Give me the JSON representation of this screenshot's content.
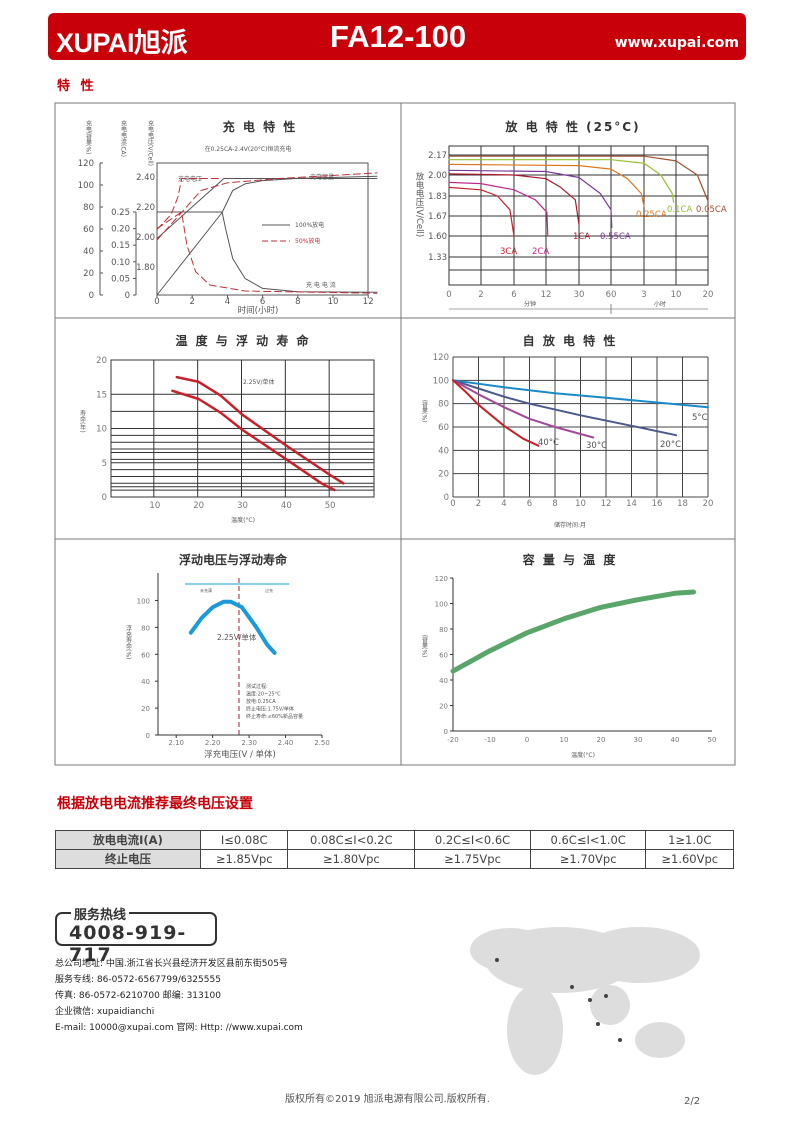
{
  "header": {
    "logo": "XUPAI旭派",
    "model": "FA12-100",
    "website": "www.xupai.com"
  },
  "section_title": "特 性",
  "charge_chart": {
    "title": "充 电 特 性",
    "subtitle": "在0.25CA-2.4V(20°C)恒流充电",
    "axis_capacity": "充电容量(%)",
    "axis_current": "充电电流(CA)",
    "axis_voltage": "充电电压(V/Cell)",
    "xlabel": "时间(小时)",
    "label_voltage": "充电电压",
    "label_capacity": "充电容量",
    "label_current": "充 电 电 流",
    "legend_100": "100%放电",
    "legend_50": "50%放电"
  },
  "discharge_chart": {
    "title": "放 电 特 性 (25°C)",
    "ylabel": "放电电压(V/Cell)",
    "unit_min": "分钟",
    "unit_hour": "小时"
  },
  "templife_chart": {
    "title": "温 度 与 浮 动 寿 命",
    "ylabel": "寿命(年)",
    "xlabel": "温度(°C)",
    "annotation": "2.25V/单体"
  },
  "selfdis_chart": {
    "title": "自 放 电 特 性",
    "ylabel": "容量(%)",
    "xlabel": "储存时间:月"
  },
  "float_chart": {
    "title": "浮动电压与浮动寿命",
    "ylabel": "浮充寿命(%)",
    "xlabel": "浮充电压(V / 单体)",
    "annotation": "2.25V/单体",
    "zone_low": "未充满",
    "zone_high": "过充",
    "notes": [
      "测试过程:",
      "温度:20~25°C",
      "放电:0.25CA",
      "终止电压:1.75V/单体",
      "终止寿命:≤60%新品容量"
    ]
  },
  "captemp_chart": {
    "title": "容 量 与 温 度",
    "ylabel": "容量(%)",
    "xlabel": "温度(°C)"
  },
  "chart_data": [
    {
      "id": "charge",
      "type": "line",
      "x_ticks": [
        0,
        2,
        4,
        6,
        8,
        10,
        12
      ],
      "capacity_ticks": [
        0,
        20,
        40,
        60,
        80,
        100,
        120
      ],
      "current_ticks": [
        "0",
        "0.05",
        "0.10",
        "0.15",
        "0.20",
        "0.25"
      ],
      "voltage_ticks": [
        "1.80",
        "2.00",
        "2.20",
        "2.40"
      ],
      "series": [
        {
          "name": "100%放电",
          "kind": "voltage",
          "color": "#555555",
          "dash": false,
          "points": [
            [
              0,
              1.99
            ],
            [
              3.8,
              2.39
            ],
            [
              12.5,
              2.39
            ]
          ]
        },
        {
          "name": "100%放电",
          "kind": "current",
          "color": "#555555",
          "dash": false,
          "points": [
            [
              0,
              0.25
            ],
            [
              3.7,
              0.25
            ],
            [
              3.9,
              0.2
            ],
            [
              4.3,
              0.11
            ],
            [
              5,
              0.05
            ],
            [
              6,
              0.02
            ],
            [
              8,
              0.01
            ],
            [
              12.5,
              0.008
            ]
          ]
        },
        {
          "name": "100%放电",
          "kind": "capacity",
          "color": "#555555",
          "dash": false,
          "points": [
            [
              0,
              0
            ],
            [
              3.7,
              75
            ],
            [
              4.3,
              95
            ],
            [
              5,
              101
            ],
            [
              6,
              104
            ],
            [
              8,
              106
            ],
            [
              12.5,
              108
            ]
          ]
        },
        {
          "name": "50%放电",
          "kind": "voltage",
          "color": "#c0303a",
          "dash": true,
          "points": [
            [
              0,
              2.05
            ],
            [
              0.8,
              2.15
            ],
            [
              1.2,
              2.27
            ],
            [
              1.4,
              2.39
            ],
            [
              3.7,
              2.39
            ]
          ]
        },
        {
          "name": "50%放电",
          "kind": "current",
          "color": "#c0303a",
          "dash": true,
          "points": [
            [
              0,
              0.2
            ],
            [
              1.4,
              0.25
            ],
            [
              1.7,
              0.15
            ],
            [
              2.2,
              0.07
            ],
            [
              3,
              0.03
            ],
            [
              5,
              0.012
            ],
            [
              12.5,
              0.005
            ]
          ]
        },
        {
          "name": "50%放电",
          "kind": "capacity",
          "color": "#c0303a",
          "dash": true,
          "points": [
            [
              0,
              50
            ],
            [
              1.4,
              75
            ],
            [
              2.5,
              95
            ],
            [
              4,
              102
            ],
            [
              7,
              106
            ],
            [
              12.5,
              111
            ]
          ]
        }
      ]
    },
    {
      "id": "discharge",
      "type": "line",
      "x_tick_labels": [
        "0",
        "2",
        "6",
        "12",
        "30",
        "60",
        "3",
        "10",
        "20"
      ],
      "x_minutes": [
        0,
        2,
        6,
        12,
        30,
        60,
        180,
        600,
        1200
      ],
      "y_ticks": [
        "2.17",
        "2.00",
        "1.83",
        "1.67",
        "1.60",
        "1.33"
      ],
      "series": [
        {
          "name": "3CA",
          "color": "#c8202a",
          "points": [
            [
              0,
              1.9
            ],
            [
              2,
              1.88
            ],
            [
              4,
              1.83
            ],
            [
              5.5,
              1.72
            ],
            [
              6,
              1.6
            ]
          ]
        },
        {
          "name": "2CA",
          "color": "#c02a8a",
          "points": [
            [
              0,
              1.94
            ],
            [
              2,
              1.93
            ],
            [
              6,
              1.88
            ],
            [
              10,
              1.8
            ],
            [
              12.5,
              1.7
            ],
            [
              13,
              1.6
            ]
          ]
        },
        {
          "name": "1CA",
          "color": "#b01830",
          "points": [
            [
              0,
              2.01
            ],
            [
              6,
              2.0
            ],
            [
              12,
              1.97
            ],
            [
              20,
              1.9
            ],
            [
              28,
              1.8
            ],
            [
              30,
              1.64
            ]
          ]
        },
        {
          "name": "0.55CA",
          "color": "#7a3a9a",
          "points": [
            [
              0,
              2.04
            ],
            [
              12,
              2.03
            ],
            [
              30,
              1.98
            ],
            [
              50,
              1.85
            ],
            [
              60,
              1.72
            ],
            [
              63,
              1.63
            ]
          ]
        },
        {
          "name": "0.25CA",
          "color": "#e07820",
          "points": [
            [
              0,
              2.09
            ],
            [
              30,
              2.08
            ],
            [
              60,
              2.05
            ],
            [
              120,
              1.97
            ],
            [
              170,
              1.85
            ],
            [
              180,
              1.75
            ]
          ]
        },
        {
          "name": "0.1CA",
          "color": "#98c030",
          "points": [
            [
              0,
              2.13
            ],
            [
              60,
              2.13
            ],
            [
              180,
              2.1
            ],
            [
              400,
              2.0
            ],
            [
              550,
              1.85
            ],
            [
              570,
              1.78
            ]
          ]
        },
        {
          "name": "0.05CA",
          "color": "#a05030",
          "points": [
            [
              0,
              2.16
            ],
            [
              180,
              2.16
            ],
            [
              600,
              2.12
            ],
            [
              1000,
              2.0
            ],
            [
              1200,
              1.79
            ]
          ]
        }
      ]
    },
    {
      "id": "templife",
      "type": "line",
      "xlim": [
        0,
        60
      ],
      "ylim": [
        0,
        20
      ],
      "x_ticks": [
        10,
        20,
        30,
        40,
        50
      ],
      "y_ticks": [
        0,
        5,
        10,
        15,
        20
      ],
      "series": [
        {
          "color": "#c8202a",
          "points": [
            [
              15,
              17.5
            ],
            [
              20,
              16.8
            ],
            [
              25,
              14.8
            ],
            [
              30,
              12
            ],
            [
              40,
              7.5
            ],
            [
              50,
              3.2
            ],
            [
              53,
              2
            ]
          ]
        },
        {
          "color": "#c8202a",
          "points": [
            [
              14,
              15.5
            ],
            [
              20,
              14.3
            ],
            [
              25,
              12.3
            ],
            [
              30,
              9.8
            ],
            [
              40,
              5.5
            ],
            [
              48,
              2
            ],
            [
              51,
              1
            ]
          ]
        }
      ]
    },
    {
      "id": "selfdis",
      "type": "line",
      "xlim": [
        0,
        20
      ],
      "ylim": [
        0,
        120
      ],
      "x_ticks": [
        0,
        2,
        4,
        6,
        8,
        10,
        12,
        14,
        16,
        18,
        20
      ],
      "y_ticks": [
        0,
        20,
        40,
        60,
        80,
        100,
        120
      ],
      "series": [
        {
          "name": "5°C",
          "color": "#1a8ac8",
          "points": [
            [
              0,
              100
            ],
            [
              4,
              94
            ],
            [
              8,
              89
            ],
            [
              12,
              85
            ],
            [
              16,
              81
            ],
            [
              20,
              77
            ]
          ]
        },
        {
          "name": "20°C",
          "color": "#4a5a8a",
          "points": [
            [
              0,
              100
            ],
            [
              2,
              93
            ],
            [
              4,
              86
            ],
            [
              6,
              80
            ],
            [
              10,
              70
            ],
            [
              14,
              61
            ],
            [
              17.5,
              53
            ]
          ]
        },
        {
          "name": "30°C",
          "color": "#a04a9a",
          "points": [
            [
              0,
              100
            ],
            [
              2,
              88
            ],
            [
              4,
              77
            ],
            [
              6,
              67
            ],
            [
              8,
              60
            ],
            [
              11,
              51
            ]
          ]
        },
        {
          "name": "40°C",
          "color": "#c8202a",
          "points": [
            [
              0,
              100
            ],
            [
              1,
              90
            ],
            [
              2,
              79
            ],
            [
              4,
              61
            ],
            [
              5.5,
              50
            ],
            [
              6.7,
              44
            ]
          ]
        }
      ]
    },
    {
      "id": "float",
      "type": "line",
      "xlim": [
        2.05,
        2.5
      ],
      "ylim": [
        0,
        110
      ],
      "x_ticks": [
        "2.10",
        "2.20",
        "2.30",
        "2.40",
        "2.50"
      ],
      "y_ticks": [
        0,
        20,
        40,
        60,
        80,
        100
      ],
      "series": [
        {
          "color": "#1a9ad8",
          "points": [
            [
              2.14,
              76
            ],
            [
              2.17,
              87
            ],
            [
              2.2,
              95
            ],
            [
              2.23,
              99
            ],
            [
              2.25,
              99
            ],
            [
              2.28,
              95
            ],
            [
              2.32,
              80
            ],
            [
              2.35,
              67
            ],
            [
              2.37,
              61
            ]
          ]
        }
      ]
    },
    {
      "id": "captemp",
      "type": "line",
      "xlim": [
        -20,
        50
      ],
      "ylim": [
        0,
        120
      ],
      "x_ticks": [
        -20,
        -10,
        0,
        10,
        20,
        30,
        40,
        50
      ],
      "y_ticks": [
        0,
        20,
        40,
        60,
        80,
        100,
        120
      ],
      "series": [
        {
          "color": "#5aa66a",
          "points": [
            [
              -20,
              47
            ],
            [
              -10,
              63
            ],
            [
              0,
              77
            ],
            [
              10,
              88
            ],
            [
              20,
              97
            ],
            [
              30,
              103
            ],
            [
              40,
              108
            ],
            [
              45,
              109
            ]
          ]
        }
      ]
    }
  ],
  "table_section_title": "根据放电电流推荐最终电压设置",
  "table": {
    "rows": [
      [
        "放电电流I(A)",
        "I≤0.08C",
        "0.08C≤I<0.2C",
        "0.2C≤I<0.6C",
        "0.6C≤I<1.0C",
        "1≥1.0C"
      ],
      [
        "终止电压",
        "≥1.85Vpc",
        "≥1.80Vpc",
        "≥1.75Vpc",
        "≥1.70Vpc",
        "≥1.60Vpc"
      ]
    ]
  },
  "contact": {
    "hotline_label": "服务热线",
    "hotline": "4008-919-717",
    "lines": [
      "总公司地址: 中国.浙江省长兴县经济开发区县前东街505号",
      "服务专线: 86-0572-6567799/6325555",
      "传真: 86-0572-6210700 邮编: 313100",
      "企业微信: xupaidianchi",
      "E-mail: 10000@xupai.com  官网: Http: //www.xupai.com"
    ]
  },
  "footer": {
    "copyright": "版权所有©2019 旭派电源有限公司.版权所有.",
    "page": "2/2"
  }
}
